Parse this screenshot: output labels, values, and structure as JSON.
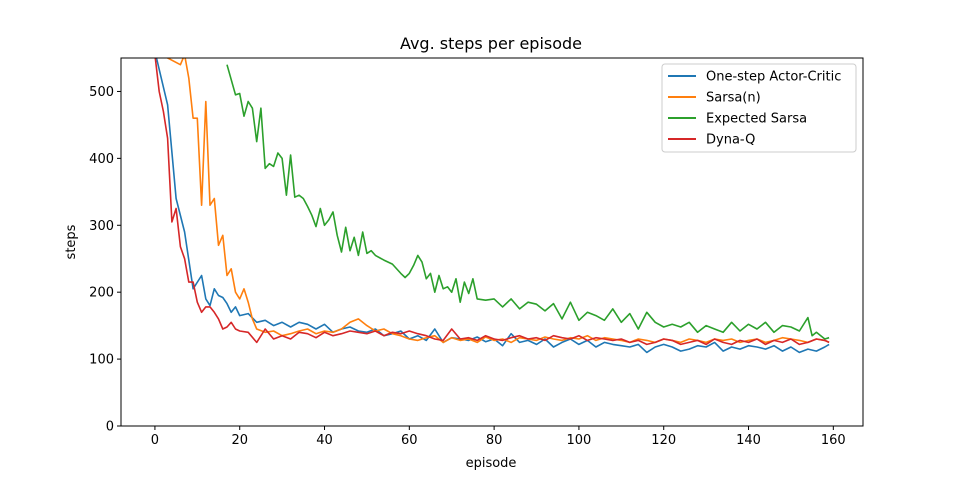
{
  "chart_data": {
    "type": "line",
    "title": "Avg. steps per episode",
    "xlabel": "episode",
    "ylabel": "steps",
    "xlim": [
      -8,
      167
    ],
    "ylim": [
      0,
      550
    ],
    "xticks": [
      0,
      20,
      40,
      60,
      80,
      100,
      120,
      140,
      160
    ],
    "yticks": [
      0,
      100,
      200,
      300,
      400,
      500
    ],
    "grid": false,
    "legend_position": "top-right",
    "series": [
      {
        "name": "One-step Actor-Critic",
        "color": "#1f77b4",
        "x": [
          0,
          3,
          5,
          7,
          9,
          11,
          12,
          13,
          14,
          15,
          16,
          17,
          18,
          19,
          20,
          22,
          24,
          26,
          28,
          30,
          32,
          34,
          36,
          38,
          40,
          42,
          44,
          46,
          48,
          50,
          52,
          54,
          56,
          58,
          60,
          62,
          64,
          66,
          68,
          70,
          72,
          74,
          76,
          78,
          80,
          82,
          84,
          86,
          88,
          90,
          92,
          94,
          96,
          98,
          100,
          102,
          104,
          106,
          108,
          110,
          112,
          114,
          116,
          118,
          120,
          122,
          124,
          126,
          128,
          130,
          132,
          134,
          136,
          138,
          140,
          142,
          144,
          146,
          148,
          150,
          152,
          154,
          156,
          158,
          159
        ],
        "values": [
          560,
          480,
          340,
          290,
          205,
          225,
          190,
          180,
          205,
          195,
          192,
          183,
          170,
          178,
          165,
          168,
          155,
          158,
          150,
          155,
          148,
          155,
          152,
          145,
          152,
          140,
          145,
          148,
          142,
          140,
          145,
          135,
          138,
          142,
          130,
          135,
          128,
          145,
          125,
          132,
          130,
          128,
          133,
          126,
          130,
          120,
          138,
          125,
          128,
          122,
          130,
          118,
          125,
          130,
          122,
          128,
          118,
          125,
          122,
          120,
          118,
          122,
          110,
          118,
          122,
          118,
          112,
          115,
          120,
          118,
          125,
          112,
          118,
          115,
          120,
          118,
          115,
          120,
          112,
          118,
          110,
          115,
          112,
          118,
          122
        ]
      },
      {
        "name": "Sarsa(n)",
        "color": "#ff7f0e",
        "x": [
          0,
          6,
          7,
          8,
          9,
          10,
          11,
          12,
          13,
          14,
          15,
          16,
          17,
          18,
          19,
          20,
          21,
          22,
          23,
          24,
          26,
          28,
          30,
          32,
          34,
          36,
          38,
          40,
          42,
          44,
          46,
          48,
          50,
          52,
          54,
          56,
          58,
          60,
          62,
          64,
          66,
          68,
          70,
          72,
          74,
          76,
          78,
          80,
          82,
          84,
          86,
          88,
          90,
          92,
          94,
          96,
          98,
          100,
          102,
          104,
          106,
          108,
          110,
          112,
          114,
          116,
          118,
          120,
          122,
          124,
          126,
          128,
          130,
          132,
          134,
          136,
          138,
          140,
          142,
          144,
          146,
          148,
          150,
          152,
          154,
          156,
          158,
          159
        ],
        "values": [
          560,
          540,
          555,
          520,
          460,
          460,
          330,
          485,
          330,
          340,
          270,
          285,
          225,
          235,
          200,
          190,
          205,
          185,
          160,
          145,
          140,
          142,
          135,
          138,
          142,
          145,
          138,
          142,
          140,
          145,
          155,
          160,
          150,
          142,
          145,
          138,
          135,
          130,
          128,
          132,
          135,
          125,
          132,
          128,
          130,
          125,
          133,
          128,
          130,
          125,
          132,
          130,
          128,
          133,
          130,
          128,
          132,
          130,
          135,
          128,
          132,
          130,
          128,
          125,
          130,
          128,
          125,
          130,
          128,
          125,
          130,
          128,
          125,
          130,
          128,
          130,
          125,
          128,
          130,
          125,
          128,
          132,
          130,
          128,
          125,
          130,
          128,
          125
        ]
      },
      {
        "name": "Expected Sarsa",
        "color": "#2ca02c",
        "x": [
          17,
          19,
          20,
          21,
          22,
          23,
          24,
          25,
          26,
          27,
          28,
          29,
          30,
          31,
          32,
          33,
          34,
          35,
          36,
          37,
          38,
          39,
          40,
          41,
          42,
          43,
          44,
          45,
          46,
          47,
          48,
          49,
          50,
          51,
          52,
          54,
          56,
          58,
          59,
          60,
          61,
          62,
          63,
          64,
          65,
          66,
          67,
          68,
          69,
          70,
          71,
          72,
          73,
          74,
          75,
          76,
          78,
          80,
          82,
          84,
          86,
          88,
          90,
          92,
          94,
          96,
          98,
          100,
          102,
          104,
          106,
          108,
          110,
          112,
          114,
          116,
          118,
          120,
          122,
          124,
          126,
          128,
          130,
          132,
          134,
          136,
          138,
          140,
          142,
          144,
          146,
          148,
          150,
          152,
          154,
          155,
          156,
          158,
          159
        ],
        "values": [
          540,
          495,
          497,
          463,
          485,
          475,
          425,
          475,
          385,
          392,
          388,
          408,
          400,
          345,
          405,
          342,
          345,
          340,
          328,
          315,
          298,
          325,
          300,
          308,
          320,
          285,
          260,
          297,
          262,
          282,
          255,
          290,
          258,
          262,
          255,
          248,
          242,
          228,
          222,
          228,
          240,
          255,
          245,
          220,
          228,
          200,
          225,
          205,
          208,
          200,
          220,
          185,
          215,
          198,
          220,
          190,
          188,
          190,
          178,
          190,
          175,
          185,
          182,
          172,
          183,
          160,
          185,
          158,
          170,
          165,
          158,
          175,
          155,
          168,
          145,
          170,
          155,
          148,
          152,
          148,
          155,
          140,
          150,
          145,
          140,
          155,
          142,
          152,
          145,
          155,
          140,
          150,
          148,
          142,
          162,
          135,
          140,
          130,
          132
        ]
      },
      {
        "name": "Dyna-Q",
        "color": "#d62728",
        "x": [
          0,
          1,
          2,
          3,
          4,
          5,
          6,
          7,
          8,
          9,
          10,
          11,
          12,
          13,
          14,
          15,
          16,
          17,
          18,
          19,
          20,
          22,
          24,
          26,
          28,
          30,
          32,
          34,
          36,
          38,
          40,
          42,
          44,
          46,
          48,
          50,
          52,
          54,
          56,
          58,
          60,
          62,
          64,
          66,
          68,
          70,
          72,
          74,
          76,
          78,
          80,
          82,
          84,
          86,
          88,
          90,
          92,
          94,
          96,
          98,
          100,
          102,
          104,
          106,
          108,
          110,
          112,
          114,
          116,
          118,
          120,
          122,
          124,
          126,
          128,
          130,
          132,
          134,
          136,
          138,
          140,
          142,
          144,
          146,
          148,
          150,
          152,
          154,
          156,
          158,
          159
        ],
        "values": [
          555,
          500,
          470,
          430,
          305,
          325,
          268,
          250,
          215,
          215,
          185,
          170,
          178,
          178,
          170,
          160,
          145,
          148,
          155,
          145,
          142,
          140,
          125,
          145,
          130,
          135,
          130,
          140,
          138,
          132,
          140,
          135,
          138,
          142,
          140,
          138,
          142,
          135,
          140,
          138,
          142,
          138,
          135,
          130,
          128,
          145,
          130,
          132,
          128,
          135,
          130,
          128,
          132,
          135,
          130,
          132,
          128,
          135,
          132,
          130,
          135,
          128,
          132,
          130,
          128,
          130,
          125,
          128,
          122,
          125,
          130,
          128,
          122,
          125,
          128,
          122,
          130,
          125,
          122,
          128,
          125,
          130,
          122,
          128,
          125,
          130,
          122,
          125,
          130,
          128,
          125
        ]
      }
    ]
  }
}
